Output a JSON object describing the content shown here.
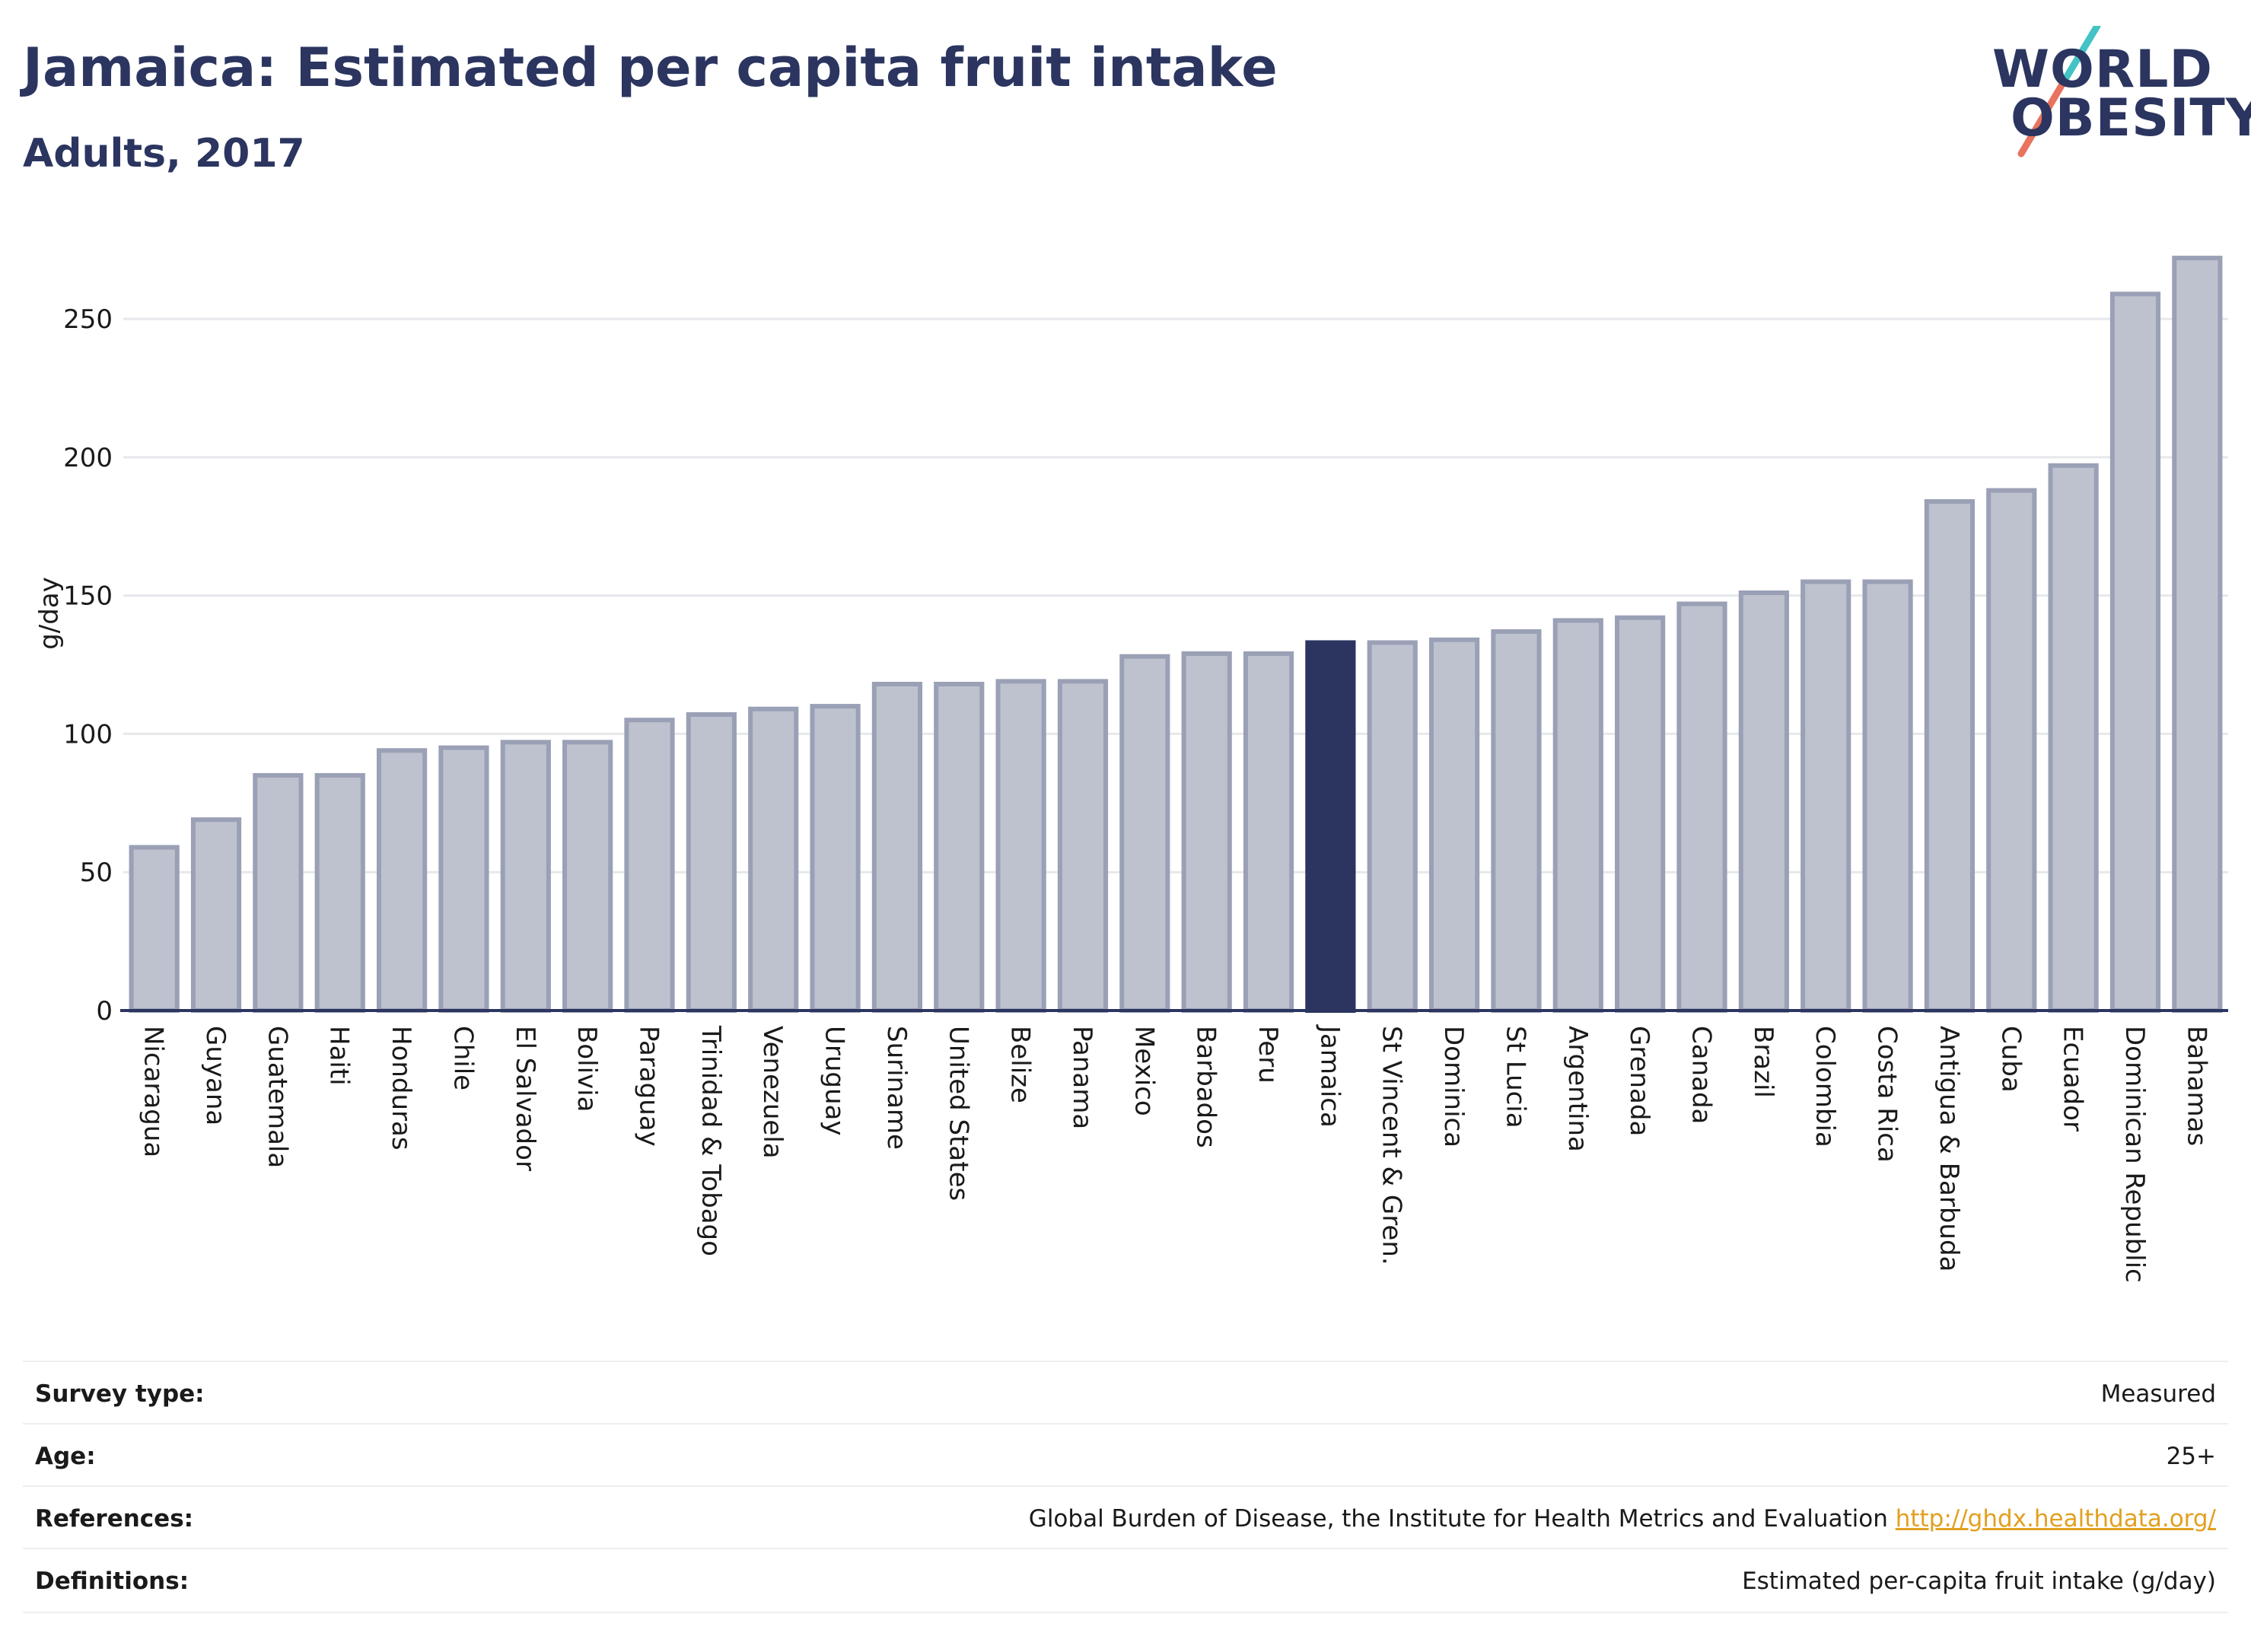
{
  "header": {
    "title": "Jamaica: Estimated per capita fruit intake",
    "subtitle": "Adults, 2017"
  },
  "logo": {
    "line1": "WORLD",
    "line2": "OBESITY",
    "slash_colors": [
      "#e8735e",
      "#43c3c5"
    ]
  },
  "chart_data": {
    "type": "bar",
    "title": "Jamaica: Estimated per capita fruit intake",
    "subtitle": "Adults, 2017",
    "xlabel": "",
    "ylabel": "g/day",
    "ylim": [
      0,
      280
    ],
    "yticks": [
      0,
      50,
      100,
      150,
      200,
      250
    ],
    "grid": true,
    "highlight": "Jamaica",
    "colors": {
      "bar": "#bec2cf",
      "bar_edge": "#9aa0b5",
      "highlight": "#2b3560",
      "grid": "#e6e8ec",
      "axis": "#2b3560"
    },
    "categories": [
      "Nicaragua",
      "Guyana",
      "Guatemala",
      "Haiti",
      "Honduras",
      "Chile",
      "El Salvador",
      "Bolivia",
      "Paraguay",
      "Trinidad & Tobago",
      "Venezuela",
      "Uruguay",
      "Suriname",
      "United States",
      "Belize",
      "Panama",
      "Mexico",
      "Barbados",
      "Peru",
      "Jamaica",
      "St Vincent & Gren.",
      "Dominica",
      "St Lucia",
      "Argentina",
      "Grenada",
      "Canada",
      "Brazil",
      "Colombia",
      "Costa Rica",
      "Antigua & Barbuda",
      "Cuba",
      "Ecuador",
      "Dominican Republic",
      "Bahamas"
    ],
    "values": [
      59,
      69,
      85,
      85,
      94,
      95,
      97,
      97,
      105,
      107,
      109,
      110,
      118,
      118,
      119,
      119,
      128,
      129,
      129,
      133,
      133,
      134,
      137,
      141,
      142,
      147,
      151,
      155,
      155,
      184,
      188,
      197,
      259,
      272
    ]
  },
  "info": [
    {
      "label": "Survey type:",
      "value": "Measured"
    },
    {
      "label": "Age:",
      "value": "25+"
    },
    {
      "label": "References:",
      "value": "Global Burden of Disease, the Institute for Health Metrics and Evaluation",
      "link": "http://ghdx.healthdata.org/"
    },
    {
      "label": "Definitions:",
      "value": "Estimated per-capita fruit intake (g/day)"
    }
  ]
}
